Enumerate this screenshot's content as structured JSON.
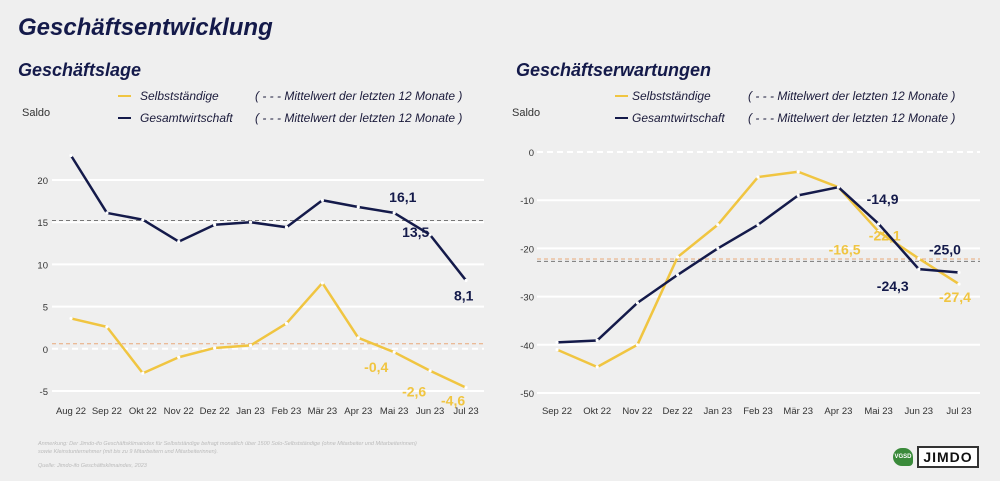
{
  "title": "Geschäftsentwicklung",
  "footnote": {
    "note1": "Anmerkung: Der Jimdo-ifo Geschäftsklimaindex für Selbstständige befragt monatlich über 1500 Solo-Selbstständige (ohne Mitarbeiter und Mitarbeiterinnen)",
    "note2": "sowie Kleinstunternehmer (mit bis zu 9 Mitarbeitern und Mitarbeiterinnen).",
    "source": "Quelle: Jimdo-ifo Geschäftsklimaindex, 2023"
  },
  "logos": {
    "vgsd": "VGSD",
    "jimdo": "JIMDO"
  },
  "colors": {
    "selbststaendige": "#f0c541",
    "gesamtwirtschaft": "#141a4a",
    "mean_selbst": "#e8a87a",
    "mean_gesamt": "#777777",
    "grid": "#ffffff"
  },
  "chart_data": [
    {
      "type": "line",
      "title": "Geschäftslage",
      "ylabel": "Saldo",
      "ylim": [
        -6,
        24
      ],
      "yticks": [
        "20",
        "15",
        "10",
        "5",
        "0",
        "-5"
      ],
      "ytick_values": [
        20,
        15,
        10,
        5,
        0,
        -5
      ],
      "grid": true,
      "zero_line_dashed": true,
      "categories": [
        "Aug 22",
        "Sep 22",
        "Okt 22",
        "Nov 22",
        "Dez 22",
        "Jan 23",
        "Feb 23",
        "Mär 23",
        "Apr 23",
        "Mai 23",
        "Jun 23",
        "Jul 23"
      ],
      "series": [
        {
          "name": "Selbstständige",
          "values": [
            3.6,
            2.6,
            -2.9,
            -1.0,
            0.1,
            0.4,
            3.0,
            7.8,
            1.3,
            -0.4,
            -2.6,
            -4.6
          ],
          "mean": 0.6
        },
        {
          "name": "Gesamtwirtschaft",
          "values": [
            22.9,
            16.1,
            15.3,
            12.7,
            14.7,
            15.0,
            14.4,
            17.6,
            16.8,
            16.1,
            13.5,
            8.1
          ],
          "mean": 15.2
        }
      ],
      "data_labels": {
        "Selbstständige": [
          "-0,4",
          "-2,6",
          "-4,6"
        ],
        "Gesamtwirtschaft": [
          "16,1",
          "13,5",
          "8,1"
        ]
      },
      "legend": {
        "placement": "top",
        "items": [
          "Selbstständige",
          "Gesamtwirtschaft"
        ],
        "mean_items": [
          "( - - - Mittelwert der letzten 12 Monate )",
          "( - - - Mittelwert der letzten 12 Monate )"
        ]
      }
    },
    {
      "type": "line",
      "title": "Geschäftserwartungen",
      "ylabel": "Saldo",
      "ylim": [
        -50,
        0
      ],
      "yticks": [
        "0",
        "-10",
        "-20",
        "-30",
        "-40",
        "-50"
      ],
      "ytick_values": [
        0,
        -10,
        -20,
        -30,
        -40,
        -50
      ],
      "grid": true,
      "zero_line_dashed": true,
      "categories": [
        "Sep 22",
        "Okt 22",
        "Nov 22",
        "Dez 22",
        "Jan 23",
        "Feb 23",
        "Mär 23",
        "Apr 23",
        "Mai 23",
        "Jun 23",
        "Jul 23"
      ],
      "series": [
        {
          "name": "Selbstständige",
          "values": [
            -41.0,
            -44.6,
            -40.0,
            -21.8,
            -15.1,
            -5.2,
            -4.1,
            -7.3,
            -16.5,
            -22.1,
            -27.4
          ],
          "mean": -22.2
        },
        {
          "name": "Gesamtwirtschaft",
          "values": [
            -39.5,
            -39.1,
            -31.3,
            -25.5,
            -20.0,
            -15.1,
            -9.0,
            -7.3,
            -14.9,
            -24.3,
            -25.0
          ],
          "mean": -22.7
        }
      ],
      "data_labels": {
        "Selbstständige": [
          "-16,5",
          "-22,1",
          "-27,4"
        ],
        "Gesamtwirtschaft": [
          "-14,9",
          "-24,3",
          "-25,0"
        ]
      },
      "legend": {
        "placement": "top",
        "items": [
          "Selbstständige",
          "Gesamtwirtschaft"
        ],
        "mean_items": [
          "( - - - Mittelwert der letzten 12 Monate )",
          "( - - - Mittelwert der letzten 12 Monate )"
        ]
      }
    }
  ]
}
